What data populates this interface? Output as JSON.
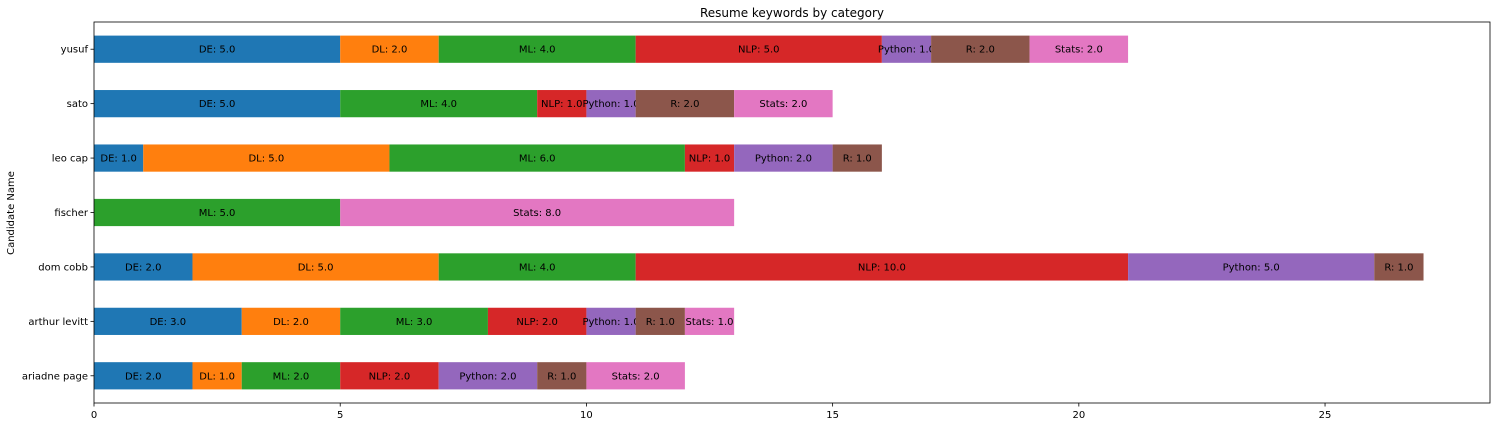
{
  "chart_data": {
    "type": "bar",
    "orientation": "horizontal",
    "stacked": true,
    "title": "Resume keywords by category",
    "xlabel": "",
    "ylabel": "Candidate Name",
    "xlim": [
      0,
      28.35
    ],
    "xticks": [
      0,
      5,
      10,
      15,
      20,
      25
    ],
    "grid": false,
    "legend": "none",
    "categories": [
      "ariadne page",
      "arthur levitt",
      "dom cobb",
      "fischer ",
      "leo cap",
      "sato",
      "yusuf"
    ],
    "series": [
      {
        "name": "DE",
        "color": "#1f77b4",
        "values": [
          2,
          3,
          2,
          null,
          1,
          5,
          5
        ]
      },
      {
        "name": "DL",
        "color": "#ff7f0e",
        "values": [
          1,
          2,
          5,
          null,
          5,
          null,
          2
        ]
      },
      {
        "name": "ML",
        "color": "#2ca02c",
        "values": [
          2,
          3,
          4,
          5,
          6,
          4,
          4
        ]
      },
      {
        "name": "NLP",
        "color": "#d62728",
        "values": [
          2,
          2,
          10,
          null,
          1,
          1,
          5
        ]
      },
      {
        "name": "Python",
        "color": "#9467bd",
        "values": [
          2,
          1,
          5,
          null,
          2,
          1,
          1
        ]
      },
      {
        "name": "R",
        "color": "#8c564b",
        "values": [
          1,
          1,
          1,
          null,
          1,
          2,
          2
        ]
      },
      {
        "name": "Stats",
        "color": "#e377c2",
        "values": [
          2,
          1,
          null,
          8,
          null,
          2,
          2
        ]
      }
    ]
  }
}
